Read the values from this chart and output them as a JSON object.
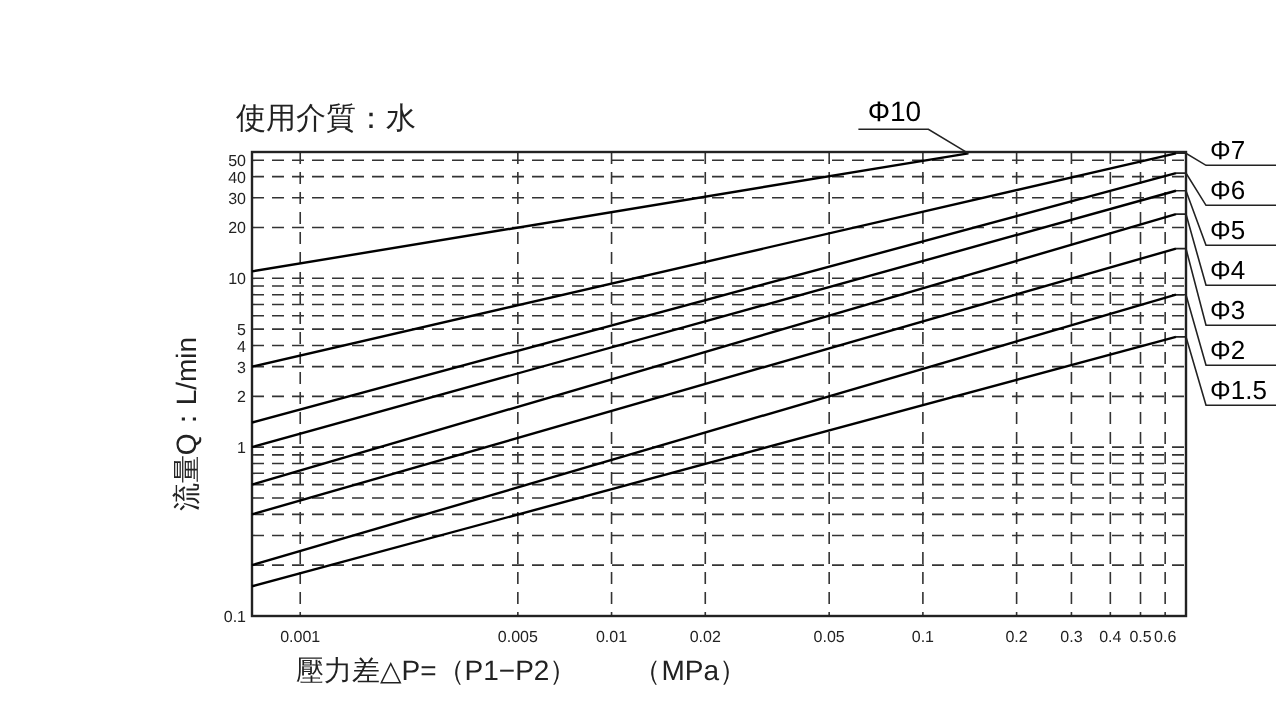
{
  "chart_data": {
    "type": "line",
    "title": "使用介質：水",
    "xlabel": "壓力差△P=（P1−P2）　　（MPa）",
    "ylabel": "流量Q：L/min",
    "log": "xy",
    "grid": true,
    "legend": false,
    "line_style": "solid",
    "marker": "none",
    "xlim": [
      0.0007,
      0.7
    ],
    "ylim": [
      0.1,
      56
    ],
    "xticks": [
      0.001,
      0.005,
      0.01,
      0.02,
      0.05,
      0.1,
      0.2,
      0.3,
      0.4,
      0.5,
      0.6
    ],
    "yticks": [
      0.1,
      {
        "value": 0.2,
        "label": null
      },
      {
        "value": 0.3,
        "label": null
      },
      {
        "value": 0.4,
        "label": null
      },
      {
        "value": 0.5,
        "label": null
      },
      {
        "value": 0.6,
        "label": null
      },
      {
        "value": 0.7,
        "label": null
      },
      {
        "value": 0.8,
        "label": null
      },
      {
        "value": 0.9,
        "label": null
      },
      1,
      2,
      3,
      4,
      5,
      {
        "value": 6,
        "label": null
      },
      {
        "value": 7,
        "label": null
      },
      {
        "value": 8,
        "label": null
      },
      {
        "value": 9,
        "label": null
      },
      10,
      20,
      30,
      40,
      50
    ],
    "series": [
      {
        "name": "Φ10",
        "color": "#000000",
        "x": [
          0.0007,
          0.14
        ],
        "values": [
          11,
          55
        ]
      },
      {
        "name": "Φ7",
        "color": "#000000",
        "x": [
          0.0007,
          0.65
        ],
        "values": [
          3,
          55
        ]
      },
      {
        "name": "Φ6",
        "color": "#000000",
        "x": [
          0.0007,
          0.65
        ],
        "values": [
          1.4,
          42
        ]
      },
      {
        "name": "Φ5",
        "color": "#000000",
        "x": [
          0.0007,
          0.65
        ],
        "values": [
          1,
          33
        ]
      },
      {
        "name": "Φ4",
        "color": "#000000",
        "x": [
          0.0007,
          0.65
        ],
        "values": [
          0.6,
          24
        ]
      },
      {
        "name": "Φ3",
        "color": "#000000",
        "x": [
          0.0007,
          0.65
        ],
        "values": [
          0.4,
          15
        ]
      },
      {
        "name": "Φ2",
        "color": "#000000",
        "x": [
          0.0007,
          0.65
        ],
        "values": [
          0.2,
          8
        ]
      },
      {
        "name": "Φ1.5",
        "color": "#000000",
        "x": [
          0.0007,
          0.65
        ],
        "values": [
          0.15,
          4.5
        ]
      }
    ]
  }
}
